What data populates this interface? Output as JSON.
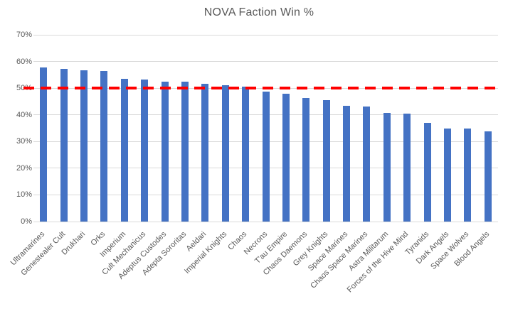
{
  "chart_data": {
    "type": "bar",
    "title": "NOVA Faction Win %",
    "xlabel": "",
    "ylabel": "",
    "categories": [
      "Ultramarines",
      "Genestealer Cult",
      "Drukhari",
      "Orks",
      "Imperium",
      "Cult Mechanicus",
      "Adeptus Custodes",
      "Adepta Sororitas",
      "Aeldari",
      "Imperial Knights",
      "Chaos",
      "Necrons",
      "T'au Empire",
      "Chaos Daemons",
      "Grey Knights",
      "Space Marines",
      "Chaos Space Marines",
      "Astra Militarum",
      "Forces of the Hive Mind",
      "Tyranids",
      "Dark Angels",
      "Space Wolves",
      "Blood Angels"
    ],
    "values": [
      57.8,
      57.2,
      56.8,
      56.4,
      53.4,
      53.1,
      52.5,
      52.4,
      51.7,
      51.2,
      50.6,
      48.7,
      47.9,
      46.4,
      45.4,
      43.4,
      43.1,
      40.8,
      40.4,
      37.1,
      35.0,
      34.8,
      33.9
    ],
    "ylim": [
      0,
      70
    ],
    "ytick_step": 10,
    "yticks": [
      "0%",
      "10%",
      "20%",
      "30%",
      "40%",
      "50%",
      "60%",
      "70%"
    ],
    "grid": "horizontal",
    "legend": "none",
    "reference_line": {
      "y": 50,
      "style": "dashed",
      "color": "#ff0000"
    }
  },
  "colors": {
    "bar": "#4472c4",
    "gridline": "#d9d9d9",
    "axis_text": "#595959",
    "title_text": "#595959",
    "reference_line": "#ff0000",
    "background": "#ffffff"
  }
}
